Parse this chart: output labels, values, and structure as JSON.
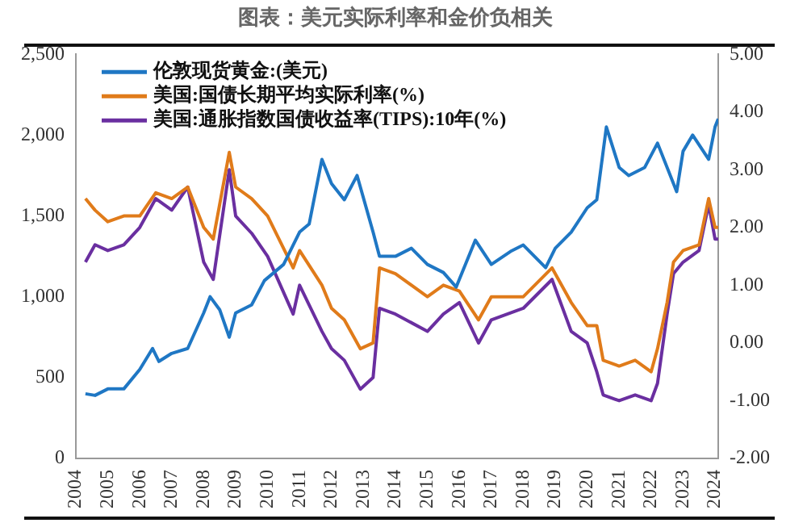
{
  "chart_data": {
    "type": "line",
    "title": "图表：美元实际利率和金价负相关",
    "series": [
      {
        "name": "伦敦现货黄金:(美元)",
        "color": "#1f77c4",
        "axis": "y",
        "x": [
          2004.3,
          2004.6,
          2005,
          2005.5,
          2006,
          2006.4,
          2006.6,
          2007,
          2007.5,
          2008,
          2008.2,
          2008.5,
          2008.8,
          2009,
          2009.5,
          2009.9,
          2010.5,
          2011,
          2011.3,
          2011.7,
          2012,
          2012.4,
          2012.8,
          2013.3,
          2013.5,
          2014,
          2014.5,
          2015,
          2015.5,
          2015.9,
          2016.5,
          2017,
          2017.6,
          2018,
          2018.7,
          2019,
          2019.5,
          2020,
          2020.3,
          2020.6,
          2021,
          2021.3,
          2021.8,
          2022.2,
          2022.8,
          2023,
          2023.3,
          2023.8,
          2024,
          2024.1
        ],
        "values": [
          400,
          390,
          430,
          430,
          550,
          680,
          600,
          650,
          680,
          900,
          1000,
          920,
          750,
          900,
          950,
          1100,
          1200,
          1400,
          1450,
          1850,
          1700,
          1600,
          1750,
          1400,
          1250,
          1250,
          1300,
          1200,
          1150,
          1060,
          1350,
          1200,
          1280,
          1320,
          1180,
          1300,
          1400,
          1550,
          1600,
          2050,
          1800,
          1750,
          1800,
          1950,
          1650,
          1900,
          2000,
          1850,
          2050,
          2100
        ]
      },
      {
        "name": "美国:国债长期平均实际利率(%)",
        "color": "#e07b1a",
        "axis": "y2",
        "x": [
          2004.3,
          2004.6,
          2005,
          2005.5,
          2006,
          2006.5,
          2007,
          2007.5,
          2008,
          2008.3,
          2008.8,
          2009,
          2009.5,
          2010,
          2010.8,
          2011,
          2011.7,
          2012,
          2012.4,
          2012.9,
          2013.3,
          2013.5,
          2014,
          2015,
          2015.5,
          2016,
          2016.6,
          2017,
          2018,
          2018.9,
          2019.5,
          2020,
          2020.3,
          2020.5,
          2021,
          2021.5,
          2022,
          2022.2,
          2022.5,
          2022.7,
          2023,
          2023.5,
          2023.8,
          2024,
          2024.1
        ],
        "values": [
          2.5,
          2.3,
          2.1,
          2.2,
          2.2,
          2.6,
          2.5,
          2.7,
          2.0,
          1.8,
          3.3,
          2.7,
          2.5,
          2.2,
          1.3,
          1.6,
          1.0,
          0.6,
          0.4,
          -0.1,
          0.0,
          1.3,
          1.2,
          0.8,
          1.0,
          0.9,
          0.4,
          0.8,
          0.8,
          1.3,
          0.7,
          0.3,
          0.3,
          -0.3,
          -0.4,
          -0.3,
          -0.5,
          -0.1,
          0.7,
          1.4,
          1.6,
          1.7,
          2.5,
          2.0,
          2.0
        ]
      },
      {
        "name": "美国:通胀指数国债收益率(TIPS):10年(%)",
        "color": "#6a2fa0",
        "axis": "y2",
        "x": [
          2004.3,
          2004.6,
          2005,
          2005.5,
          2006,
          2006.5,
          2007,
          2007.5,
          2008,
          2008.3,
          2008.8,
          2009,
          2009.5,
          2010,
          2010.8,
          2011,
          2011.7,
          2012,
          2012.4,
          2012.9,
          2013.3,
          2013.5,
          2014,
          2015,
          2015.5,
          2016,
          2016.6,
          2017,
          2018,
          2018.9,
          2019.5,
          2020,
          2020.3,
          2020.5,
          2021,
          2021.5,
          2022,
          2022.2,
          2022.5,
          2022.7,
          2023,
          2023.5,
          2023.8,
          2024,
          2024.1
        ],
        "values": [
          1.4,
          1.7,
          1.6,
          1.7,
          2.0,
          2.5,
          2.3,
          2.7,
          1.4,
          1.1,
          3.0,
          2.2,
          1.9,
          1.5,
          0.5,
          1.0,
          0.2,
          -0.1,
          -0.3,
          -0.8,
          -0.6,
          0.6,
          0.5,
          0.2,
          0.5,
          0.7,
          0.0,
          0.4,
          0.6,
          1.1,
          0.2,
          0.0,
          -0.5,
          -0.9,
          -1.0,
          -0.9,
          -1.0,
          -0.7,
          0.5,
          1.2,
          1.4,
          1.6,
          2.4,
          1.8,
          1.8
        ]
      }
    ],
    "xlim": [
      2004,
      2024.1
    ],
    "xticks": [
      2004,
      2005,
      2006,
      2007,
      2008,
      2009,
      2010,
      2011,
      2012,
      2013,
      2014,
      2015,
      2016,
      2017,
      2018,
      2019,
      2020,
      2021,
      2022,
      2023,
      2024
    ],
    "ylim": [
      0,
      2500
    ],
    "yticks": [
      0,
      500,
      {
        "value": 1000,
        "label": "1,000"
      },
      {
        "value": 1500,
        "label": "1,500"
      },
      {
        "value": 2000,
        "label": "2,000"
      },
      {
        "value": 2500,
        "label": "2,500"
      }
    ],
    "y2lim": [
      -2,
      5
    ],
    "y2ticks": [
      {
        "value": -2,
        "label": "-2.00"
      },
      {
        "value": -1,
        "label": "-1.00"
      },
      {
        "value": 0,
        "label": "0.00"
      },
      {
        "value": 1,
        "label": "1.00"
      },
      {
        "value": 2,
        "label": "2.00"
      },
      {
        "value": 3,
        "label": "3.00"
      },
      {
        "value": 4,
        "label": "4.00"
      },
      {
        "value": 5,
        "label": "5.00"
      }
    ],
    "grid": false,
    "legend": "top left",
    "marker": "none",
    "line_style": "solid"
  }
}
